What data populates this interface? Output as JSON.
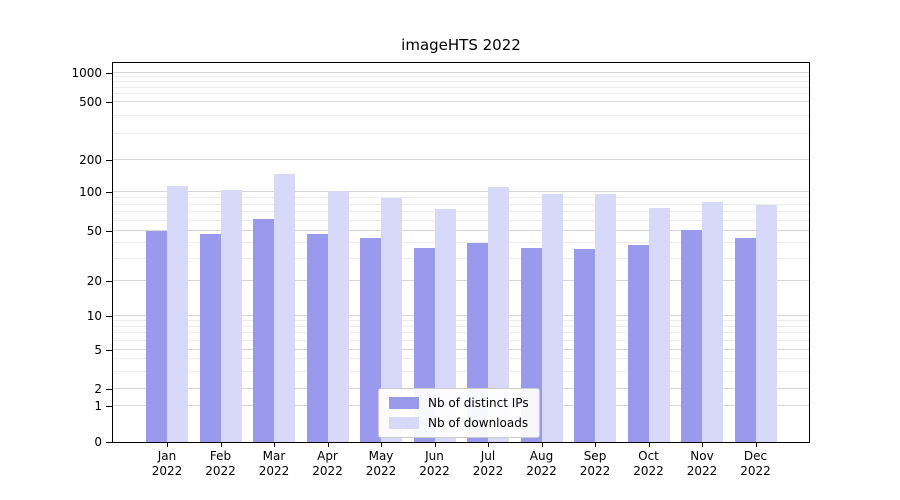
{
  "figure": {
    "title": "imageHTS 2022"
  },
  "chart_data": {
    "type": "bar",
    "title": "imageHTS 2022",
    "yscale": "symlog (log above ~2, linear near 0)",
    "grid": "horizontal major and log-minor gridlines, light gray",
    "legend_position": "lower center",
    "categories": [
      "Jan 2022",
      "Feb 2022",
      "Mar 2022",
      "Apr 2022",
      "May 2022",
      "Jun 2022",
      "Jul 2022",
      "Aug 2022",
      "Sep 2022",
      "Oct 2022",
      "Nov 2022",
      "Dec 2022"
    ],
    "x_tick_months": [
      "Jan",
      "Feb",
      "Mar",
      "Apr",
      "May",
      "Jun",
      "Jul",
      "Aug",
      "Sep",
      "Oct",
      "Nov",
      "Dec"
    ],
    "x_tick_year": "2022",
    "y_ticks": [
      "0",
      "1",
      "2",
      "5",
      "10",
      "20",
      "50",
      "100",
      "200",
      "500",
      "1000"
    ],
    "ylim": [
      0,
      1150
    ],
    "series": [
      {
        "key": "distinct-ips",
        "name": "Nb of distinct IPs",
        "color": "#9999ed",
        "values": [
          50,
          48,
          62,
          48,
          44,
          37,
          40,
          37,
          36,
          39,
          51,
          44
        ]
      },
      {
        "key": "downloads",
        "name": "Nb of downloads",
        "color": "#d8d8f8",
        "values": [
          115,
          105,
          150,
          102,
          90,
          74,
          112,
          97,
          97,
          76,
          84,
          80
        ]
      }
    ],
    "colors": {
      "axis": "#000000",
      "grid_major": "#d6d6d6",
      "grid_minor": "#ececec",
      "legend_border": "#cbcbcb"
    }
  }
}
